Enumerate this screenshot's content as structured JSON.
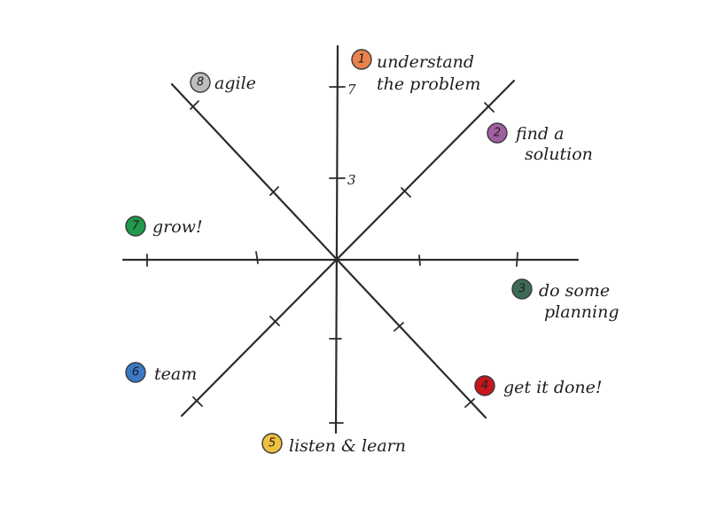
{
  "diagram": {
    "axis_labels": {
      "upper": "7",
      "lower": "3"
    },
    "steps": [
      {
        "num": "1",
        "lines": [
          "understand",
          "the problem"
        ],
        "color": "#e8824a"
      },
      {
        "num": "2",
        "lines": [
          "find a",
          "solution"
        ],
        "color": "#a05fa0"
      },
      {
        "num": "3",
        "lines": [
          "do some",
          "planning"
        ],
        "color": "#3e6b57"
      },
      {
        "num": "4",
        "lines": [
          "get it done!"
        ],
        "color": "#c8161d"
      },
      {
        "num": "5",
        "lines": [
          "listen & learn"
        ],
        "color": "#f0c040"
      },
      {
        "num": "6",
        "lines": [
          "team"
        ],
        "color": "#3b78c6"
      },
      {
        "num": "7",
        "lines": [
          "grow!"
        ],
        "color": "#1f9a4a"
      },
      {
        "num": "8",
        "lines": [
          "agile"
        ],
        "color": "#bdbdbd"
      }
    ]
  }
}
